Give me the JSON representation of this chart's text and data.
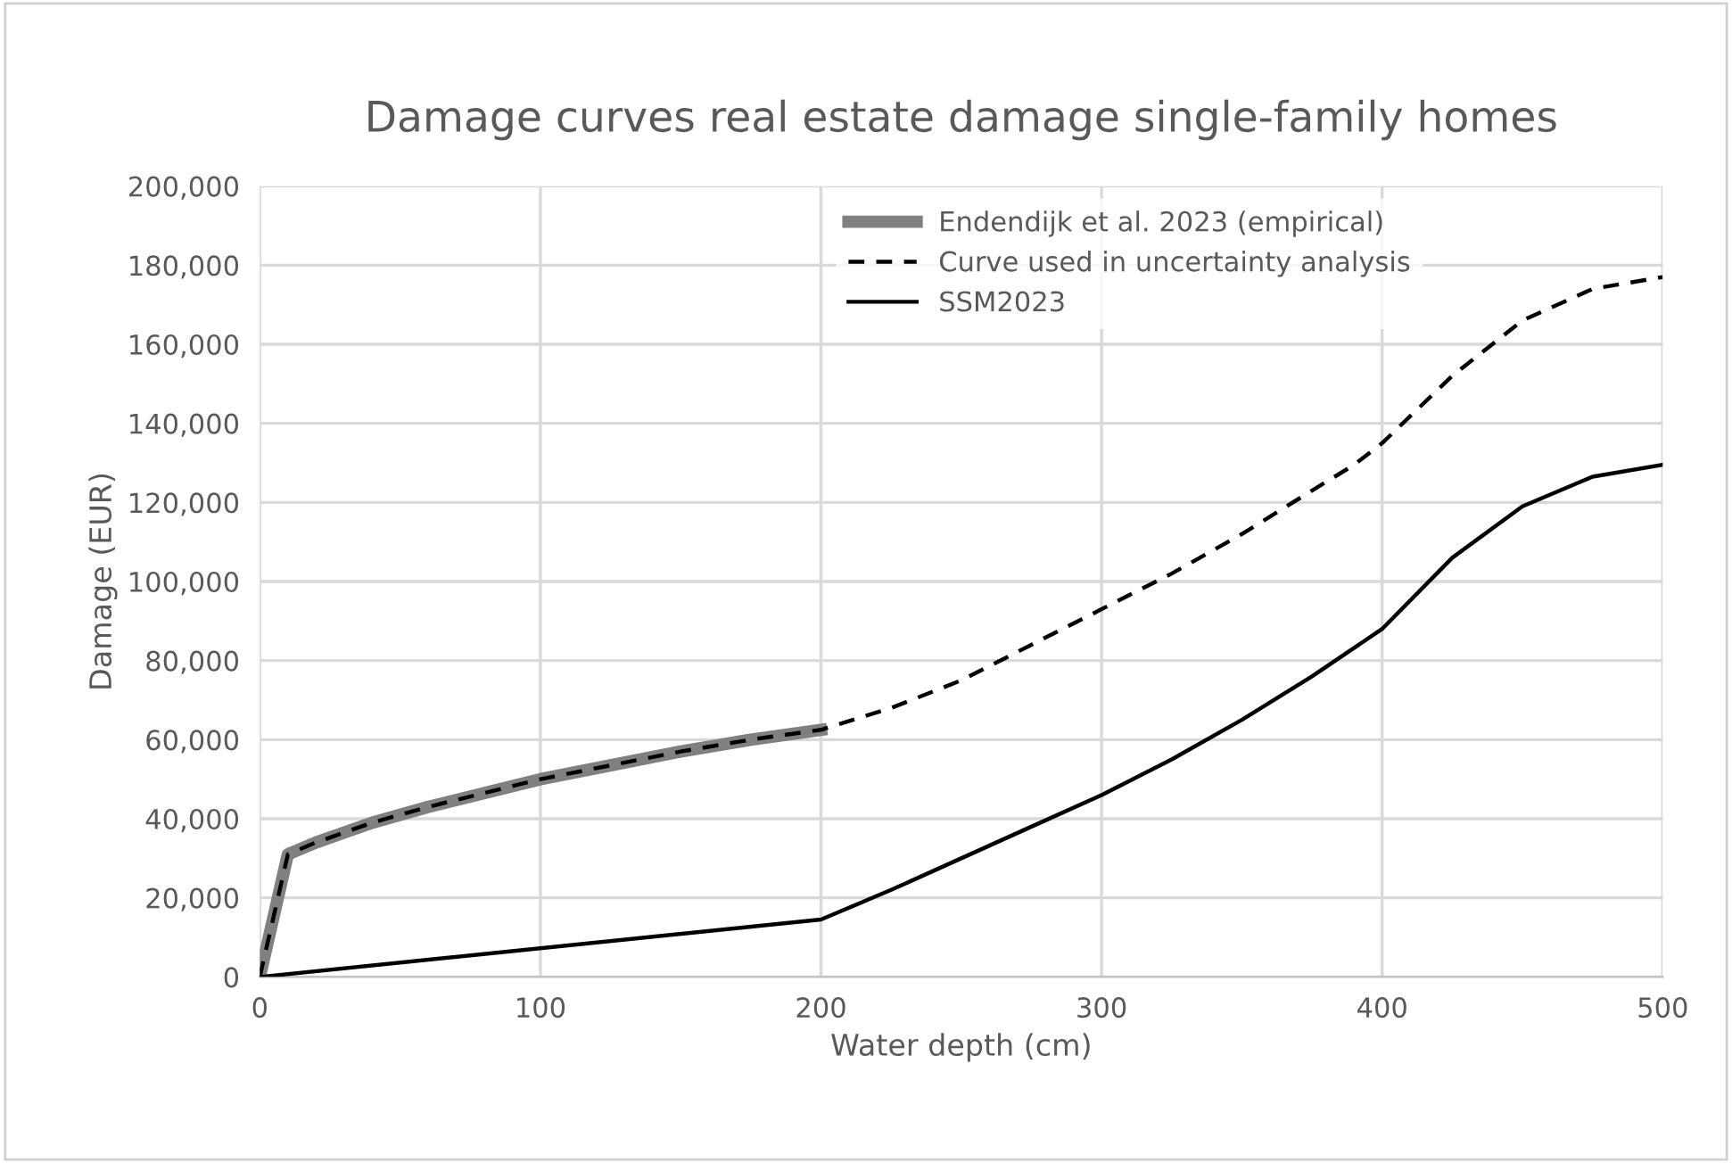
{
  "chart_data": {
    "type": "line",
    "title": "Damage curves real estate damage single-family homes",
    "xlabel": "Water depth (cm)",
    "ylabel": "Damage (EUR)",
    "xlim": [
      0,
      500
    ],
    "xticks": [
      0,
      100,
      200,
      300,
      400,
      500
    ],
    "ylim": [
      0,
      200000
    ],
    "yticks": [
      {
        "value": 0,
        "label": "0"
      },
      {
        "value": 20000,
        "label": "20,000"
      },
      {
        "value": 40000,
        "label": "40,000"
      },
      {
        "value": 60000,
        "label": "60,000"
      },
      {
        "value": 80000,
        "label": "80,000"
      },
      {
        "value": 100000,
        "label": "100,000"
      },
      {
        "value": 120000,
        "label": "120,000"
      },
      {
        "value": 140000,
        "label": "140,000"
      },
      {
        "value": 160000,
        "label": "160,000"
      },
      {
        "value": 180000,
        "label": "180,000"
      },
      {
        "value": 200000,
        "label": "200,000"
      }
    ],
    "grid": true,
    "legend": "top",
    "marker": "none",
    "series": [
      {
        "name": "Endendijk et al. 2023 (empirical)",
        "color": "#808080",
        "line_style": "solid",
        "x": [
          0,
          10,
          20,
          40,
          60,
          80,
          100,
          125,
          150,
          175,
          200
        ],
        "values": [
          0,
          31000,
          34000,
          39000,
          43000,
          46500,
          50000,
          53500,
          57000,
          60000,
          62500
        ]
      },
      {
        "name": "Curve used in uncertainty analysis",
        "color": "#000000",
        "line_style": "dashed",
        "x": [
          0,
          10,
          20,
          40,
          60,
          80,
          100,
          125,
          150,
          175,
          200,
          225,
          250,
          275,
          300,
          325,
          350,
          375,
          390,
          400,
          425,
          450,
          475,
          500
        ],
        "values": [
          0,
          31000,
          34000,
          39000,
          43000,
          46500,
          50000,
          53500,
          57000,
          60000,
          62500,
          68000,
          75000,
          84000,
          93000,
          102000,
          112000,
          123000,
          129500,
          135000,
          152000,
          166000,
          174000,
          177000
        ]
      },
      {
        "name": "SSM2023",
        "color": "#000000",
        "line_style": "solid",
        "x": [
          0,
          200,
          225,
          250,
          275,
          300,
          325,
          350,
          375,
          400,
          425,
          450,
          475,
          500
        ],
        "values": [
          0,
          14500,
          22000,
          30000,
          38000,
          46000,
          55000,
          65000,
          76000,
          88000,
          106000,
          119000,
          126500,
          129500
        ]
      }
    ]
  }
}
